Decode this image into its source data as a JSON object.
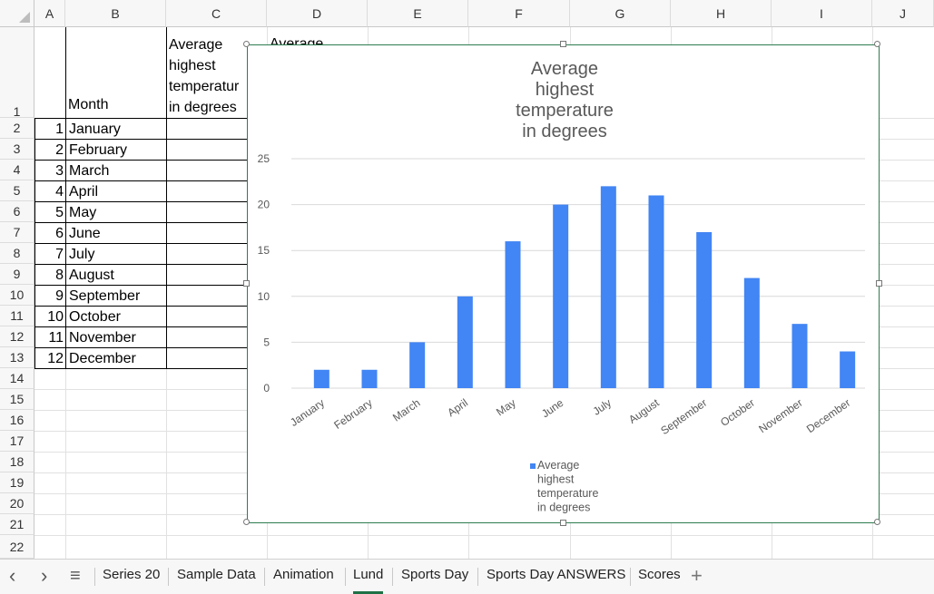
{
  "columns": [
    "A",
    "B",
    "C",
    "D",
    "E",
    "F",
    "G",
    "H",
    "I",
    "J"
  ],
  "rows": [
    "1",
    "2",
    "3",
    "4",
    "5",
    "6",
    "7",
    "8",
    "9",
    "10",
    "11",
    "12",
    "13",
    "14",
    "15",
    "16",
    "17",
    "18",
    "19",
    "20",
    "21",
    "22"
  ],
  "sheet": {
    "header_month": "Month",
    "header_c": "Average highest temperatur in degrees",
    "header_c_lines": [
      "Average",
      "highest",
      "temperatur",
      "in degrees"
    ],
    "header_d_partial": "Average",
    "months": [
      {
        "n": "1",
        "name": "January"
      },
      {
        "n": "2",
        "name": "February"
      },
      {
        "n": "3",
        "name": "March"
      },
      {
        "n": "4",
        "name": "April"
      },
      {
        "n": "5",
        "name": "May"
      },
      {
        "n": "6",
        "name": "June"
      },
      {
        "n": "7",
        "name": "July"
      },
      {
        "n": "8",
        "name": "August"
      },
      {
        "n": "9",
        "name": "September"
      },
      {
        "n": "10",
        "name": "October"
      },
      {
        "n": "11",
        "name": "November"
      },
      {
        "n": "12",
        "name": "December"
      }
    ]
  },
  "chart_data": {
    "type": "bar",
    "title": "Average highest temperature in degrees",
    "title_lines": [
      "Average",
      "highest",
      "temperature",
      "in degrees"
    ],
    "categories": [
      "January",
      "February",
      "March",
      "April",
      "May",
      "June",
      "July",
      "August",
      "September",
      "October",
      "November",
      "December"
    ],
    "series": [
      {
        "name": "Average highest temperature in degrees",
        "values": [
          2,
          2,
          5,
          10,
          16,
          20,
          22,
          21,
          17,
          12,
          7,
          4
        ],
        "color": "#4285f4"
      }
    ],
    "legend_lines": [
      "Average",
      "highest",
      "temperature",
      "in degrees"
    ],
    "yticks": [
      "0",
      "5",
      "10",
      "15",
      "20",
      "25"
    ],
    "ylim": [
      0,
      25
    ],
    "grid": true,
    "legend": "bottom"
  },
  "tabs": {
    "items": [
      "Series 20",
      "Sample Data",
      "Animation",
      "Lund",
      "Sports Day",
      "Sports Day ANSWERS",
      "Scores"
    ],
    "active": "Lund",
    "prev": "‹",
    "next": "›",
    "menu": "≡",
    "add": "+"
  }
}
